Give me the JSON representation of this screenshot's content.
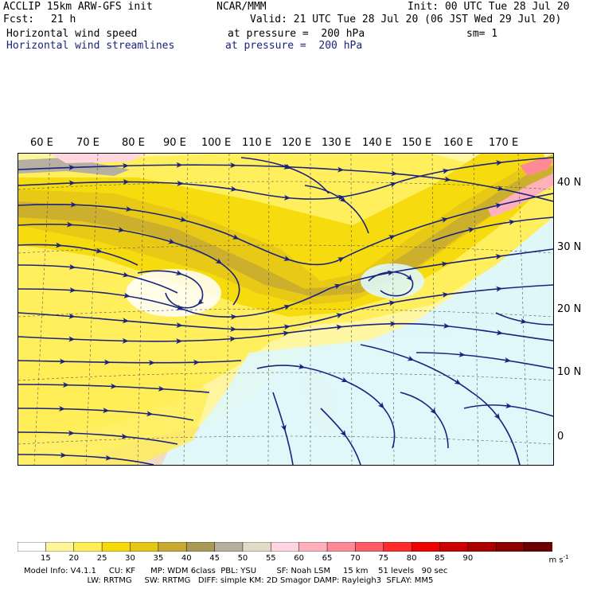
{
  "header": {
    "model": "ACCLIP 15km ARW-GFS init",
    "center": "NCAR/MMM",
    "init": "Init: 00 UTC Tue 28 Jul 20",
    "fcst_label": "Fcst:",
    "fcst_value": "21 h",
    "valid": "Valid: 21 UTC Tue 28 Jul 20 (06 JST Wed 29 Jul 20)",
    "field1": "Horizontal wind speed",
    "field1_level": "at pressure =  200 hPa",
    "smooth": "sm= 1",
    "field2": "Horizontal wind streamlines",
    "field2_level": "at pressure =  200 hPa"
  },
  "map": {
    "lon_labels": [
      "60 E",
      "70 E",
      "80 E",
      "90 E",
      "100 E",
      "110 E",
      "120 E",
      "130 E",
      "140 E",
      "150 E",
      "160 E",
      "170 E"
    ],
    "lat_labels": [
      "40 N",
      "30 N",
      "20 N",
      "10 N",
      "0"
    ],
    "colors": {
      "ocean_weak": "#e0f7fa",
      "land_weak": "#f2dcc2",
      "ws15": "#fff59d",
      "ws20": "#ffee58",
      "ws25": "#f5d90a",
      "ws30": "#e6c617",
      "ws35": "#c8aa32",
      "ws40": "#aa9a55",
      "ws45": "#b5b0a0",
      "ws50": "#ffd6e0",
      "ws55": "#ffb0bd",
      "streamline": "#1a237e"
    }
  },
  "colorbar": {
    "colors": [
      "#ffffff",
      "#fff59d",
      "#ffee58",
      "#f5d90a",
      "#e6c617",
      "#c8aa32",
      "#aa9a55",
      "#b5b0a0",
      "#e0dcc8",
      "#ffd6e0",
      "#ffb0bd",
      "#ff8a95",
      "#ff5c66",
      "#ff2a2a",
      "#ee0000",
      "#cc0000",
      "#aa0000",
      "#8b0000",
      "#6b0000"
    ],
    "labels": [
      "15",
      "20",
      "25",
      "30",
      "35",
      "40",
      "45",
      "50",
      "55",
      "60",
      "65",
      "70",
      "75",
      "80",
      "85",
      "90"
    ],
    "units": "m s",
    "units_sup": "-1"
  },
  "footer": {
    "line1": "Model Info: V4.1.1     CU: KF      MP: WDM 6class  PBL: YSU        SF: Noah LSM     15 km    51 levels   90 sec",
    "line2": "                         LW: RRTMG     SW: RRTMG   DIFF: simple KM: 2D Smagor DAMP: Rayleigh3  SFLAY: MM5"
  }
}
